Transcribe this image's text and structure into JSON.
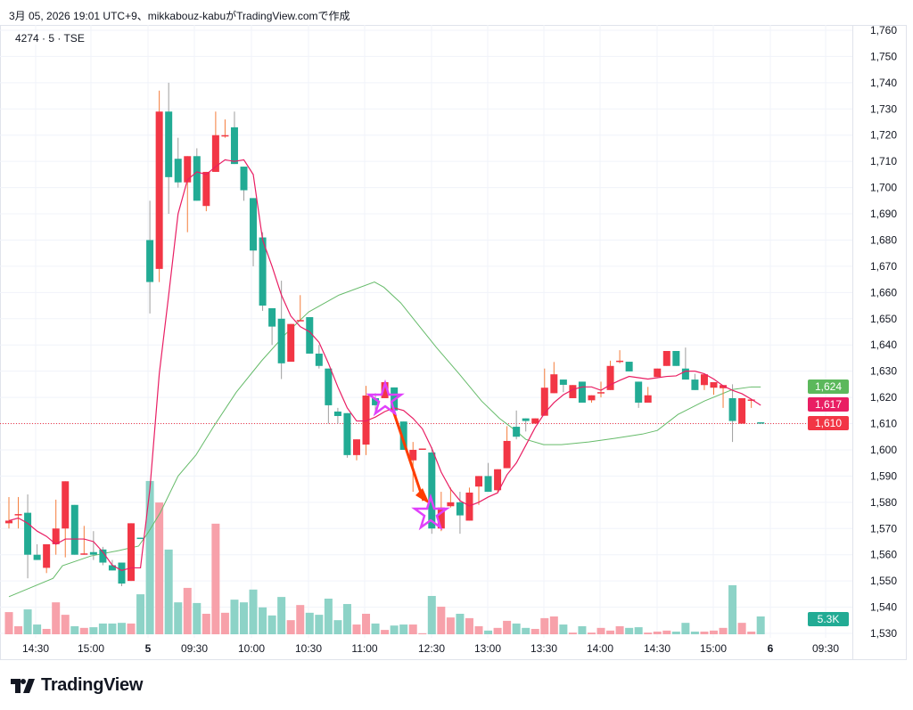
{
  "caption": "3月 05, 2026 19:01 UTC+9、mikkabouz-kabuがTradingView.comで作成",
  "symbol": "4274 · 5 · TSE",
  "brand": "TradingView",
  "tags": {
    "ma_long": "1,624",
    "ma_short": "1,617",
    "last_price": "1,610",
    "volume": "5.3K"
  },
  "colors": {
    "up": "#f23645",
    "down": "#22ab94",
    "vol_up": "#f7a1aa",
    "vol_down": "#8dd3c7",
    "ma_short": "#e91e63",
    "ma_long": "#66bb6a",
    "tag_long": "#5cb85c",
    "tag_short": "#e91e63",
    "tag_last": "#f23645",
    "tag_vol": "#22ab94",
    "annotation_star": "#e040fb",
    "annotation_arrow": "#ff3d00"
  },
  "chart_data": {
    "type": "candlestick",
    "title": "4274 · 5 · TSE",
    "price_axis": {
      "min": 1530,
      "max": 1760,
      "step": 10,
      "labels": [
        "1,760",
        "1,750",
        "1,740",
        "1,730",
        "1,720",
        "1,710",
        "1,700",
        "1,690",
        "1,680",
        "1,670",
        "1,660",
        "1,650",
        "1,640",
        "1,630",
        "1,620",
        "1,610",
        "1,600",
        "1,590",
        "1,580",
        "1,570",
        "1,560",
        "1,550",
        "1,540",
        "1,530"
      ]
    },
    "time_axis": [
      {
        "label": "14:30",
        "bold": false
      },
      {
        "label": "15:00",
        "bold": false
      },
      {
        "label": "5",
        "bold": true
      },
      {
        "label": "09:30",
        "bold": false
      },
      {
        "label": "10:00",
        "bold": false
      },
      {
        "label": "10:30",
        "bold": false
      },
      {
        "label": "11:00",
        "bold": false
      },
      {
        "label": "12:30",
        "bold": false
      },
      {
        "label": "13:00",
        "bold": false
      },
      {
        "label": "13:30",
        "bold": false
      },
      {
        "label": "14:00",
        "bold": false
      },
      {
        "label": "14:30",
        "bold": false
      },
      {
        "label": "15:00",
        "bold": false
      },
      {
        "label": "6",
        "bold": true
      },
      {
        "label": "09:30",
        "bold": false
      }
    ],
    "last_price": 1610,
    "volume_unit": "K",
    "ohlcv": [
      [
        1572,
        1582,
        1570,
        1573,
        6.6
      ],
      [
        1575,
        1582,
        1570,
        1575.5,
        2.4
      ],
      [
        1576,
        1583,
        1551,
        1560,
        7.4
      ],
      [
        1560,
        1564,
        1558,
        1558,
        2.9
      ],
      [
        1555,
        1564,
        1553,
        1564,
        1.6
      ],
      [
        1564,
        1581,
        1560,
        1570,
        9.5
      ],
      [
        1570,
        1588,
        1559,
        1588,
        5.8
      ],
      [
        1579,
        1579,
        1560,
        1560,
        2.4
      ],
      [
        1560,
        1571,
        1560,
        1560.5,
        1.9
      ],
      [
        1561,
        1569,
        1558,
        1560,
        2.1
      ],
      [
        1562,
        1563,
        1556,
        1557,
        3.2
      ],
      [
        1556,
        1558,
        1554,
        1554,
        3.2
      ],
      [
        1557,
        1557,
        1548,
        1549,
        3.4
      ],
      [
        1550,
        1572,
        1550,
        1572,
        3.2
      ],
      [
        1566.5,
        1566.5,
        1566,
        1566,
        11.9
      ],
      [
        1680,
        1695,
        1652,
        1664,
        45.6
      ],
      [
        1669,
        1737,
        1664,
        1729,
        39.2
      ],
      [
        1729,
        1740,
        1690,
        1704,
        25.2
      ],
      [
        1711,
        1719,
        1700,
        1702,
        9.5
      ],
      [
        1702,
        1712,
        1683,
        1712,
        13.8
      ],
      [
        1712,
        1715,
        1695,
        1695,
        9.3
      ],
      [
        1693,
        1706,
        1691,
        1706,
        6.1
      ],
      [
        1706,
        1729,
        1706,
        1720,
        32.9
      ],
      [
        1719.5,
        1726,
        1719,
        1720,
        6.4
      ],
      [
        1723,
        1729,
        1709,
        1709,
        10.3
      ],
      [
        1708,
        1708,
        1695,
        1699,
        9.5
      ],
      [
        1696,
        1696,
        1670,
        1676,
        13.3
      ],
      [
        1681,
        1683,
        1653,
        1655,
        8.0
      ],
      [
        1654,
        1654,
        1640,
        1647,
        5.6
      ],
      [
        1650,
        1664.5,
        1627,
        1633,
        11.1
      ],
      [
        1633.6,
        1648,
        1633.6,
        1648,
        4.2
      ],
      [
        1649,
        1659,
        1649,
        1649.5,
        8.7
      ],
      [
        1650.6,
        1650.6,
        1636.7,
        1636.7,
        6.4
      ],
      [
        1636.7,
        1640,
        1631,
        1632,
        5.8
      ],
      [
        1631,
        1631,
        1610,
        1617,
        10.6
      ],
      [
        1614.6,
        1616,
        1610,
        1612.9,
        4.2
      ],
      [
        1614,
        1614,
        1597,
        1598,
        9.0
      ],
      [
        1598,
        1604,
        1596,
        1604,
        2.9
      ],
      [
        1602,
        1624.4,
        1598,
        1620.7,
        6.1
      ],
      [
        1619.7,
        1621.6,
        1615,
        1617,
        3.2
      ],
      [
        1619.7,
        1625.8,
        1619.7,
        1625.8,
        1.3
      ],
      [
        1623.8,
        1623.8,
        1615,
        1615,
        2.6
      ],
      [
        1610.8,
        1610.8,
        1600,
        1600,
        2.9
      ],
      [
        1596,
        1603,
        1584,
        1600,
        2.9
      ],
      [
        1600,
        1600.5,
        1600,
        1600.5,
        0.3
      ],
      [
        1599,
        1601,
        1568,
        1570,
        11.4
      ],
      [
        1570,
        1584,
        1569,
        1578,
        8.2
      ],
      [
        1578.5,
        1585.6,
        1578,
        1580,
        5.0
      ],
      [
        1580,
        1584,
        1568,
        1575,
        6.1
      ],
      [
        1573,
        1585.6,
        1573,
        1583.7,
        4.8
      ],
      [
        1586,
        1590,
        1579,
        1590,
        2.4
      ],
      [
        1590,
        1595,
        1584,
        1584,
        1.1
      ],
      [
        1584.6,
        1592.6,
        1584,
        1592.6,
        1.9
      ],
      [
        1593,
        1609,
        1593,
        1603.4,
        4.0
      ],
      [
        1608.8,
        1615,
        1604,
        1605,
        3.2
      ],
      [
        1612,
        1612,
        1607,
        1611,
        1.9
      ],
      [
        1610,
        1612,
        1610,
        1612,
        1.6
      ],
      [
        1613,
        1631,
        1613,
        1623.7,
        4.8
      ],
      [
        1621.6,
        1633.5,
        1621.6,
        1628.8,
        5.3
      ],
      [
        1626.8,
        1626.8,
        1622,
        1624.8,
        2.9
      ],
      [
        1619.7,
        1624.7,
        1619.7,
        1624.7,
        0.5
      ],
      [
        1626,
        1626,
        1618,
        1618,
        2.4
      ],
      [
        1618.9,
        1620.8,
        1618,
        1620.8,
        0.5
      ],
      [
        1621.5,
        1626,
        1620,
        1622,
        1.9
      ],
      [
        1622.8,
        1634,
        1622.8,
        1632,
        1.1
      ],
      [
        1633.5,
        1638,
        1633,
        1634,
        2.4
      ],
      [
        1633.6,
        1633.6,
        1629.9,
        1629.9,
        1.9
      ],
      [
        1626,
        1626,
        1616,
        1618,
        2.1
      ],
      [
        1618,
        1624,
        1618,
        1620.8,
        0.5
      ],
      [
        1627.8,
        1631,
        1627.8,
        1631,
        0.8
      ],
      [
        1632,
        1637.7,
        1632,
        1637.7,
        1.1
      ],
      [
        1637.7,
        1637.7,
        1632,
        1632,
        0.8
      ],
      [
        1631,
        1639,
        1626.8,
        1626.8,
        3.4
      ],
      [
        1626.8,
        1629,
        1622.8,
        1622.8,
        0.8
      ],
      [
        1624.7,
        1628.8,
        1622.8,
        1628.8,
        0.8
      ],
      [
        1623.7,
        1625.8,
        1621,
        1625.8,
        1.1
      ],
      [
        1623.5,
        1624.7,
        1616,
        1624.7,
        1.9
      ],
      [
        1619.7,
        1625,
        1603,
        1611,
        14.6
      ],
      [
        1610,
        1619.7,
        1610,
        1619.7,
        3.4
      ],
      [
        1619,
        1619.5,
        1616,
        1619.2,
        0.8
      ],
      [
        1610.5,
        1610.5,
        1610,
        1610,
        5.3
      ]
    ],
    "ma_short": [
      1573,
      1574,
      1572,
      1569,
      1567,
      1564,
      1566,
      1566,
      1566,
      1565,
      1561,
      1556,
      1554,
      1555,
      1555,
      1585,
      1629,
      1659,
      1690,
      1703,
      1706,
      1705,
      1708,
      1710.6,
      1710,
      1710.6,
      1705,
      1680,
      1670,
      1659,
      1651,
      1647,
      1645,
      1641,
      1633,
      1624,
      1616,
      1611,
      1611,
      1612.5,
      1614.6,
      1616,
      1615,
      1612,
      1608,
      1600.6,
      1591.5,
      1585,
      1580.6,
      1578.6,
      1580,
      1582,
      1583.6,
      1590.5,
      1595,
      1601.7,
      1608.5,
      1614,
      1618,
      1621,
      1623,
      1624,
      1624,
      1622.7,
      1624.8,
      1626.5,
      1628,
      1627.5,
      1627,
      1627.5,
      1628,
      1628.2,
      1630,
      1630,
      1629,
      1627,
      1624.4,
      1622.7,
      1621.4,
      1619.3,
      1617
    ],
    "ma_long": [
      [
        0,
        1544
      ],
      [
        4.7,
        1551
      ],
      [
        5.7,
        1555.8
      ],
      [
        8.7,
        1559.5
      ],
      [
        11.7,
        1561.6
      ],
      [
        13.8,
        1563.3
      ],
      [
        14.8,
        1568.4
      ],
      [
        16.1,
        1576
      ],
      [
        18,
        1590
      ],
      [
        19.9,
        1598
      ],
      [
        21.8,
        1609
      ],
      [
        24.2,
        1622
      ],
      [
        26.9,
        1634
      ],
      [
        29.4,
        1644
      ],
      [
        31.9,
        1652.6
      ],
      [
        35.1,
        1659
      ],
      [
        38.9,
        1664
      ],
      [
        39.9,
        1662
      ],
      [
        41.7,
        1656
      ],
      [
        43.6,
        1647.5
      ],
      [
        45.5,
        1639
      ],
      [
        47.9,
        1629
      ],
      [
        50.3,
        1618.6
      ],
      [
        52.2,
        1612
      ],
      [
        53.9,
        1607.4
      ],
      [
        55,
        1604
      ],
      [
        56.9,
        1602
      ],
      [
        58.8,
        1602
      ],
      [
        61.7,
        1603
      ],
      [
        64.5,
        1604.4
      ],
      [
        67.4,
        1606
      ],
      [
        69,
        1607.4
      ],
      [
        71.2,
        1613.5
      ],
      [
        74,
        1618.6
      ],
      [
        77,
        1623
      ],
      [
        79,
        1624
      ],
      [
        80,
        1624
      ]
    ]
  }
}
